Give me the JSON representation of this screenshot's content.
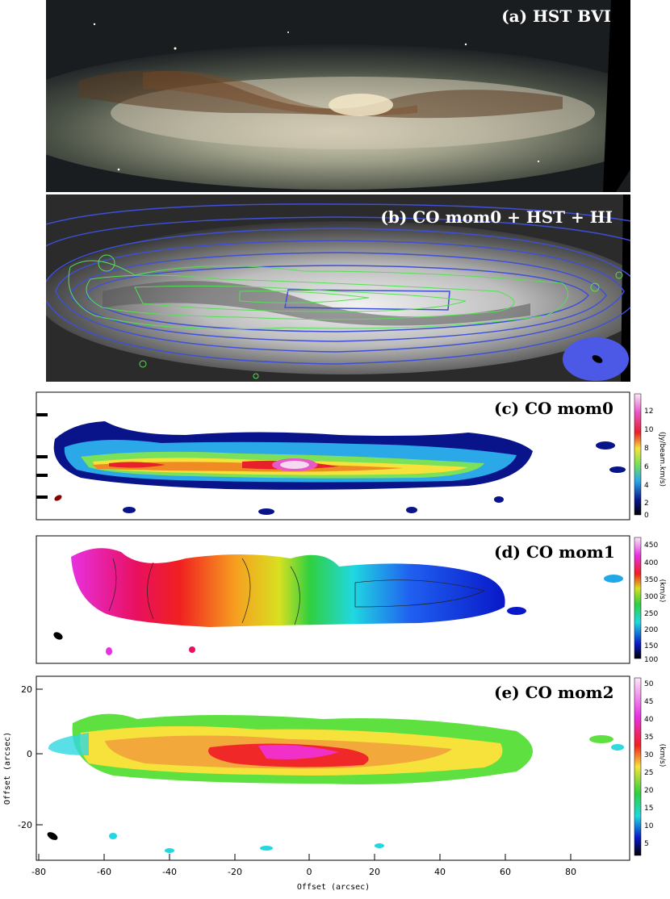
{
  "panels": {
    "a": {
      "title": "(a) HST BVI"
    },
    "b": {
      "title": "(b) CO mom0 + HST + HI"
    },
    "c": {
      "title": "(c) CO mom0",
      "colorbar": {
        "label": "(Jy/beam.km/s)",
        "ticks": [
          "12",
          "10",
          "8",
          "6",
          "4",
          "2",
          "0"
        ]
      }
    },
    "d": {
      "title": "(d) CO mom1",
      "colorbar": {
        "label": "(km/s)",
        "ticks": [
          "450",
          "400",
          "350",
          "300",
          "250",
          "200",
          "150",
          "100"
        ]
      }
    },
    "e": {
      "title": "(e) CO mom2",
      "colorbar": {
        "label": "(km/s)",
        "ticks": [
          "50",
          "45",
          "40",
          "35",
          "30",
          "25",
          "20",
          "15",
          "10",
          "5"
        ]
      }
    }
  },
  "axes": {
    "xlabel": "Offset (arcsec)",
    "ylabel": "Offset (arcsec)",
    "xticks": [
      "-80",
      "-60",
      "-40",
      "-20",
      "0",
      "20",
      "40",
      "60",
      "80"
    ],
    "yticks": [
      "20",
      "0",
      "-20"
    ]
  },
  "colors": {
    "hi_contour": "#3f4fd8",
    "co_contour": "#55e055",
    "beam_fill": "#4c59e6"
  }
}
